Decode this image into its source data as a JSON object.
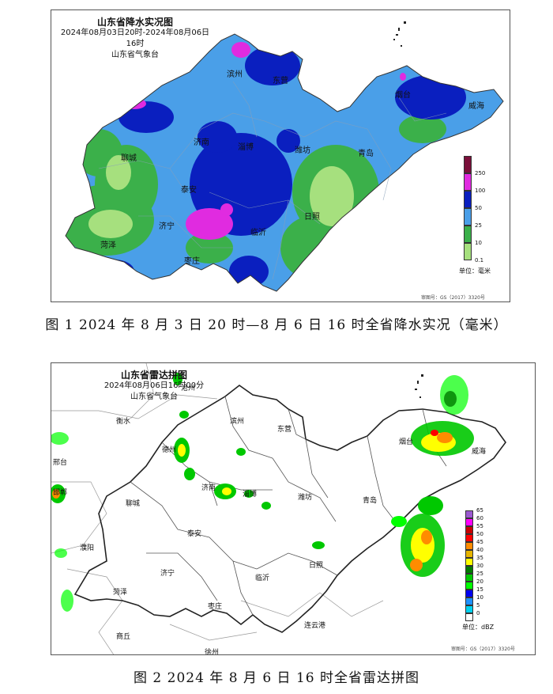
{
  "figure1": {
    "title": "山东省降水实况图",
    "period": "2024年08月03日20时-2024年08月06日16时",
    "issuer": "山东省气象台",
    "legend": {
      "ticks": [
        "250",
        "100",
        "50",
        "25",
        "10",
        "0.1"
      ],
      "colors": [
        "#7a0f3a",
        "#e02be0",
        "#0a1fbf",
        "#4a9fe8",
        "#3bb04a",
        "#a6e07e"
      ],
      "unit": "单位：毫米"
    },
    "review_no": "审图号：GS（2017）3320号",
    "cities": [
      {
        "name": "滨州"
      },
      {
        "name": "东营"
      },
      {
        "name": "烟台"
      },
      {
        "name": "威海"
      },
      {
        "name": "济南"
      },
      {
        "name": "淄博"
      },
      {
        "name": "潍坊"
      },
      {
        "name": "青岛"
      },
      {
        "name": "聊城"
      },
      {
        "name": "泰安"
      },
      {
        "name": "日照"
      },
      {
        "name": "济宁"
      },
      {
        "name": "临沂"
      },
      {
        "name": "菏泽"
      },
      {
        "name": "枣庄"
      }
    ],
    "caption": "图 1  2024 年 8 月 3 日 20 时—8 月 6 日 16 时全省降水实况（毫米）"
  },
  "figure2": {
    "title": "山东省雷达拼图",
    "time": "2024年08月06日16时00分",
    "issuer": "山东省气象台",
    "legend": {
      "ticks": [
        "65",
        "60",
        "55",
        "50",
        "45",
        "40",
        "35",
        "30",
        "25",
        "20",
        "15",
        "10",
        "5",
        "0"
      ],
      "colors": [
        "#9b59d0",
        "#ff00ff",
        "#c80000",
        "#ff0000",
        "#ff8c00",
        "#e6b400",
        "#ffff00",
        "#007a00",
        "#00c800",
        "#00ff00",
        "#0000f0",
        "#1e90ff",
        "#00d2f0",
        "#ffffff"
      ],
      "unit": "单位：dBZ"
    },
    "review_no": "审图号：GS（2017）3320号",
    "cities": [
      {
        "name": "沧州"
      },
      {
        "name": "衡水"
      },
      {
        "name": "滨州"
      },
      {
        "name": "东营"
      },
      {
        "name": "德州"
      },
      {
        "name": "烟台"
      },
      {
        "name": "威海"
      },
      {
        "name": "邢台"
      },
      {
        "name": "邯郸"
      },
      {
        "name": "济南"
      },
      {
        "name": "淄博"
      },
      {
        "name": "潍坊"
      },
      {
        "name": "聊城"
      },
      {
        "name": "青岛"
      },
      {
        "name": "泰安"
      },
      {
        "name": "濮阳"
      },
      {
        "name": "日照"
      },
      {
        "name": "济宁"
      },
      {
        "name": "临沂"
      },
      {
        "name": "菏泽"
      },
      {
        "name": "枣庄"
      },
      {
        "name": "连云港"
      },
      {
        "name": "商丘"
      },
      {
        "name": "徐州"
      }
    ],
    "caption": "图 2  2024 年 8 月 6 日 16 时全省雷达拼图"
  }
}
